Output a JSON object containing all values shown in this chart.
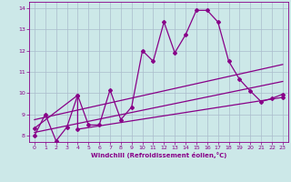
{
  "xlabel": "Windchill (Refroidissement éolien,°C)",
  "bg_color": "#cce8e8",
  "line_color": "#880088",
  "grid_color": "#aabccc",
  "xlim": [
    -0.5,
    23.5
  ],
  "ylim": [
    7.7,
    14.3
  ],
  "yticks": [
    8,
    9,
    10,
    11,
    12,
    13,
    14
  ],
  "xticks": [
    0,
    1,
    2,
    3,
    4,
    5,
    6,
    7,
    8,
    9,
    10,
    11,
    12,
    13,
    14,
    15,
    16,
    17,
    18,
    19,
    20,
    21,
    22,
    23
  ],
  "series1_x": [
    0,
    1,
    2,
    3,
    4,
    5,
    6,
    7,
    8,
    9,
    10,
    11,
    12,
    13,
    14,
    15,
    16,
    17,
    18,
    19,
    20,
    21,
    22,
    23
  ],
  "series1_y": [
    8.0,
    9.0,
    7.75,
    8.4,
    9.9,
    8.5,
    8.5,
    10.15,
    8.75,
    9.35,
    12.0,
    11.5,
    13.35,
    11.9,
    12.75,
    13.9,
    13.9,
    13.35,
    11.5,
    10.65,
    10.1,
    9.6,
    9.75,
    9.95
  ],
  "series2_x": [
    0,
    23
  ],
  "series2_y": [
    8.15,
    10.55
  ],
  "series3_x": [
    0,
    23
  ],
  "series3_y": [
    8.75,
    11.35
  ],
  "series4_x": [
    0,
    4,
    4,
    23
  ],
  "series4_y": [
    8.35,
    9.9,
    8.3,
    9.8
  ]
}
